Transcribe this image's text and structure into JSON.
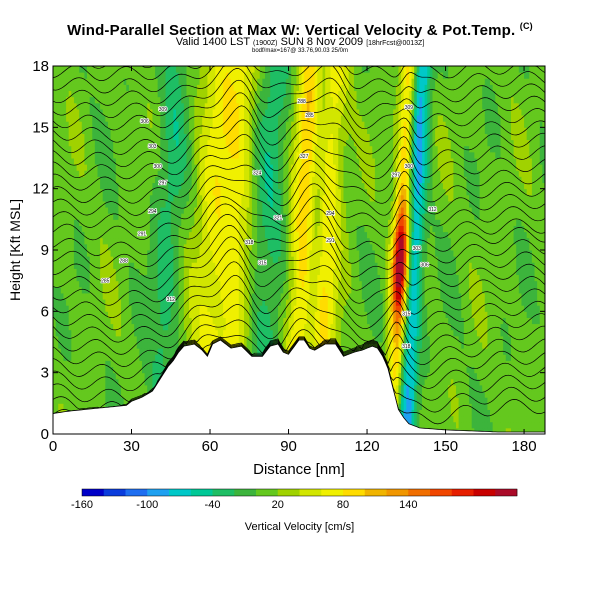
{
  "header": {
    "title": "Wind-Parallel Section at Max W: Vertical Velocity & Pot.Temp.",
    "title_mark": "(C)",
    "subtitle": "Valid 1400 LST",
    "subtitle_paren": "(1900Z)",
    "subtitle_date": "SUN 8 Nov 2009",
    "subtitle_run": "[18hrFcst@0013Z]",
    "subtitle2": "bodf/max=167@ 33.76,90.03 25/0m"
  },
  "chart_data": {
    "type": "heatmap",
    "title": "Wind-Parallel Section at Max W: Vertical Velocity & Pot.Temp.",
    "xlabel": "Distance [nm]",
    "ylabel": "Height [Kft MSL]",
    "xlim": [
      0,
      188
    ],
    "ylim": [
      0,
      18
    ],
    "xticks": [
      0,
      30,
      60,
      90,
      120,
      150,
      180
    ],
    "yticks": [
      0,
      3,
      6,
      9,
      12,
      15,
      18
    ],
    "colorbar": {
      "label": "Vertical Velocity [cm/s]",
      "tick_labels": [
        -160,
        -100,
        -40,
        20,
        80,
        140
      ],
      "colors": [
        "#0000c8",
        "#0a3cdc",
        "#1e6ef0",
        "#1ea0f0",
        "#00c8c8",
        "#00c896",
        "#1ebe64",
        "#3cb43c",
        "#64c81e",
        "#a0d200",
        "#d2e600",
        "#f0f000",
        "#ffdc00",
        "#f0b400",
        "#f09600",
        "#f06e00",
        "#f04600",
        "#e61e00",
        "#c80000",
        "#aa0a28"
      ]
    },
    "updraft_columns": [
      {
        "x": 62,
        "w": 6,
        "peak": 60
      },
      {
        "x": 71,
        "w": 4,
        "peak": 40
      },
      {
        "x": 96,
        "w": 4,
        "peak": 90
      },
      {
        "x": 104,
        "w": 4,
        "peak": 70
      },
      {
        "x": 133,
        "w": 2.2,
        "peak": 167
      }
    ],
    "downdraft_columns": [
      {
        "x": 44,
        "w": 4,
        "peak": -35
      },
      {
        "x": 82,
        "w": 5,
        "peak": -40
      },
      {
        "x": 100,
        "w": 2.5,
        "peak": -60
      },
      {
        "x": 138,
        "w": 2.5,
        "peak": -95
      }
    ],
    "terrain_profile": [
      [
        0,
        1.0
      ],
      [
        5,
        1.1
      ],
      [
        12,
        1.2
      ],
      [
        20,
        1.3
      ],
      [
        28,
        1.4
      ],
      [
        30,
        1.6
      ],
      [
        34,
        1.8
      ],
      [
        38,
        2.1
      ],
      [
        40,
        2.5
      ],
      [
        42,
        2.9
      ],
      [
        44,
        3.3
      ],
      [
        46,
        3.6
      ],
      [
        48,
        4.0
      ],
      [
        50,
        4.3
      ],
      [
        54,
        4.4
      ],
      [
        57,
        4.1
      ],
      [
        59,
        3.8
      ],
      [
        61,
        4.4
      ],
      [
        64,
        4.6
      ],
      [
        68,
        4.2
      ],
      [
        72,
        4.3
      ],
      [
        76,
        3.8
      ],
      [
        80,
        3.8
      ],
      [
        83,
        4.3
      ],
      [
        86,
        4.4
      ],
      [
        88,
        4.0
      ],
      [
        90,
        3.9
      ],
      [
        94,
        4.6
      ],
      [
        96,
        4.6
      ],
      [
        98,
        4.2
      ],
      [
        100,
        4.1
      ],
      [
        104,
        4.4
      ],
      [
        108,
        4.4
      ],
      [
        111,
        3.8
      ],
      [
        115,
        4.0
      ],
      [
        118,
        4.1
      ],
      [
        122,
        4.3
      ],
      [
        124,
        4.2
      ],
      [
        126,
        3.8
      ],
      [
        128,
        3.2
      ],
      [
        130,
        2.2
      ],
      [
        132,
        1.2
      ],
      [
        134,
        0.8
      ],
      [
        136,
        0.5
      ],
      [
        140,
        0.3
      ],
      [
        150,
        0.2
      ],
      [
        170,
        0.1
      ],
      [
        188,
        0.1
      ]
    ],
    "isentrope_labels": [
      "285",
      "288",
      "291",
      "294",
      "297",
      "300",
      "303",
      "306",
      "309",
      "312",
      "315",
      "318",
      "321",
      "324",
      "327"
    ]
  },
  "colorbar_label": "Vertical Velocity [cm/s]"
}
